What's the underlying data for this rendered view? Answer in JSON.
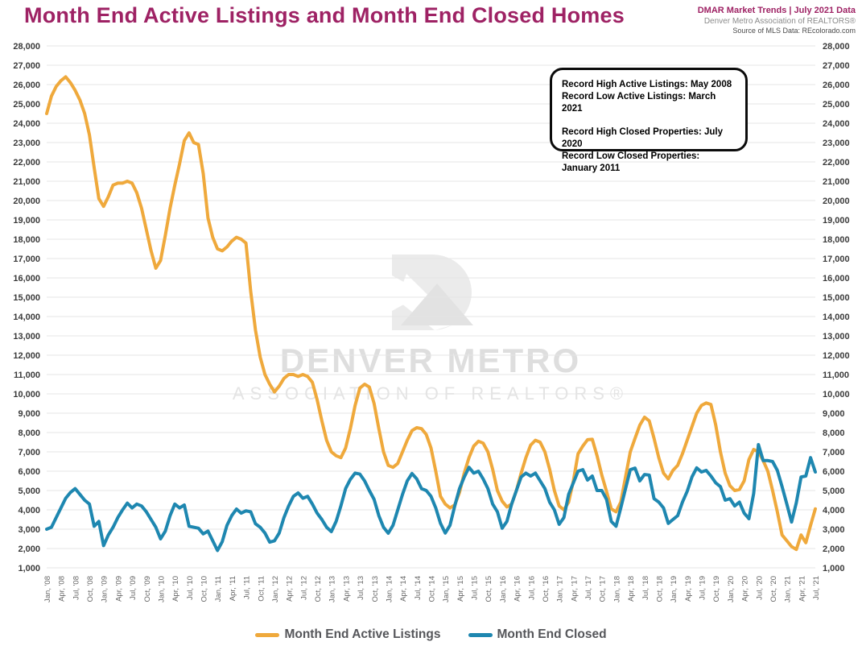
{
  "header": {
    "title": "Month End Active Listings and Month End Closed Homes",
    "meta_line1": "DMAR Market Trends | July 2021 Data",
    "meta_line2": "Denver Metro Association of REALTORS®",
    "meta_line3": "Source of MLS Data: REcolorado.com"
  },
  "annotation": {
    "line1": "Record High Active Listings: May 2008",
    "line2": "Record Low Active Listings: March 2021",
    "line3": "Record High Closed Properties: July 2020",
    "line4": "Record Low Closed Properties: January 2011"
  },
  "watermark": {
    "line1": "DENVER METRO",
    "line2": "ASSOCIATION OF REALTORS®"
  },
  "colors": {
    "active_line": "#EFA93C",
    "closed_line": "#1E87B0",
    "title": "#9e2264",
    "grid": "#e4e4e4",
    "y_label": "#3a3a3a",
    "x_label": "#666666"
  },
  "chart_data": {
    "type": "line",
    "title": "Month End Active Listings and Month End Closed Homes",
    "grid": true,
    "legend_position": "bottom",
    "ylim": [
      1000,
      28000
    ],
    "ytick_step": 1000,
    "months_per_tick": 3,
    "x_tick_labels": [
      "Jan, '08",
      "Apr, '08",
      "Jul, '08",
      "Oct, '08",
      "Jan, '09",
      "Apr, '09",
      "Jul, '09",
      "Oct, '09",
      "Jan, '10",
      "Apr, '10",
      "Jul, '10",
      "Oct, '10",
      "Jan, '11",
      "Apr, '11",
      "Jul, '11",
      "Oct, '11",
      "Jan, '12",
      "Apr, '12",
      "Jul, '12",
      "Oct, '12",
      "Jan, '13",
      "Apr, '13",
      "Jul, '13",
      "Oct, '13",
      "Jan, '14",
      "Apr, '14",
      "Jul, '14",
      "Oct, '14",
      "Jan, '15",
      "Apr, '15",
      "Jul, '15",
      "Oct, '15",
      "Jan, '16",
      "Apr, '16",
      "Jul, '16",
      "Oct, '16",
      "Jan, '17",
      "Apr, '17",
      "Jul, '17",
      "Oct, '17",
      "Jan, '18",
      "Apr, '18",
      "Jul, '18",
      "Oct, '18",
      "Jan, '19",
      "Apr, '19",
      "Jul, '19",
      "Oct, '19",
      "Jan, '20",
      "Apr, '20",
      "Jul, '20",
      "Oct, '20",
      "Jan, '21",
      "Apr, '21",
      "Jul, '21"
    ],
    "series": [
      {
        "name": "Month End Active Listings",
        "color": "#EFA93C",
        "values": [
          24500,
          25400,
          25900,
          26200,
          26400,
          26100,
          25700,
          25200,
          24500,
          23400,
          21700,
          20100,
          19700,
          20200,
          20800,
          20900,
          20900,
          21000,
          20900,
          20400,
          19600,
          18500,
          17400,
          16500,
          16900,
          18200,
          19600,
          20800,
          21900,
          23100,
          23500,
          23000,
          22900,
          21400,
          19100,
          18100,
          17500,
          17400,
          17600,
          17900,
          18100,
          18000,
          17800,
          15300,
          13300,
          11900,
          11000,
          10500,
          10100,
          10400,
          10800,
          11000,
          11000,
          10900,
          11000,
          10900,
          10600,
          9700,
          8600,
          7600,
          7000,
          6800,
          6700,
          7200,
          8200,
          9400,
          10300,
          10500,
          10350,
          9500,
          8200,
          7000,
          6300,
          6200,
          6400,
          7000,
          7600,
          8100,
          8250,
          8200,
          7900,
          7200,
          6000,
          4700,
          4300,
          4100,
          4250,
          4900,
          5900,
          6700,
          7300,
          7550,
          7450,
          7000,
          6100,
          5000,
          4450,
          4150,
          4300,
          5000,
          5900,
          6700,
          7350,
          7600,
          7500,
          7000,
          6100,
          5000,
          4200,
          4000,
          4400,
          5500,
          6900,
          7300,
          7630,
          7650,
          6800,
          5800,
          4950,
          4050,
          3900,
          4400,
          5700,
          7000,
          7700,
          8380,
          8790,
          8600,
          7700,
          6700,
          5900,
          5600,
          6040,
          6300,
          6900,
          7600,
          8300,
          9000,
          9400,
          9530,
          9450,
          8400,
          7000,
          5900,
          5250,
          5000,
          5050,
          5500,
          6600,
          7120,
          7000,
          6550,
          6000,
          5000,
          3900,
          2700,
          2400,
          2100,
          1950,
          2700,
          2300,
          3200,
          4050
        ]
      },
      {
        "name": "Month End Closed",
        "color": "#1E87B0",
        "values": [
          3000,
          3100,
          3600,
          4100,
          4600,
          4900,
          5100,
          4800,
          4500,
          4300,
          3150,
          3400,
          2150,
          2700,
          3100,
          3600,
          4000,
          4350,
          4100,
          4300,
          4200,
          3900,
          3500,
          3100,
          2500,
          2900,
          3700,
          4300,
          4100,
          4250,
          3150,
          3100,
          3050,
          2760,
          2900,
          2400,
          1900,
          2350,
          3200,
          3700,
          4040,
          3830,
          3950,
          3900,
          3280,
          3100,
          2800,
          2330,
          2400,
          2800,
          3600,
          4200,
          4700,
          4875,
          4600,
          4700,
          4300,
          3830,
          3500,
          3100,
          2875,
          3400,
          4200,
          5100,
          5580,
          5900,
          5850,
          5500,
          5000,
          4540,
          3700,
          3100,
          2790,
          3200,
          4000,
          4800,
          5500,
          5880,
          5600,
          5100,
          5000,
          4700,
          4100,
          3300,
          2800,
          3200,
          4200,
          5100,
          5700,
          6200,
          5900,
          6000,
          5600,
          5100,
          4300,
          3900,
          3050,
          3400,
          4300,
          5000,
          5700,
          5900,
          5750,
          5900,
          5500,
          5100,
          4400,
          4000,
          3250,
          3600,
          4800,
          5400,
          6000,
          6080,
          5540,
          5750,
          5000,
          5000,
          4540,
          3400,
          3150,
          4100,
          5100,
          6080,
          6160,
          5500,
          5830,
          5800,
          4580,
          4400,
          4100,
          3300,
          3500,
          3700,
          4400,
          4960,
          5700,
          6170,
          5960,
          6040,
          5750,
          5400,
          5200,
          4500,
          4580,
          4200,
          4400,
          3830,
          3540,
          4840,
          7375,
          6550,
          6550,
          6500,
          6040,
          5200,
          4300,
          3370,
          4370,
          5700,
          5750,
          6700,
          5960
        ]
      }
    ],
    "annotations": [
      "Record High Active Listings: May 2008",
      "Record Low Active Listings: March 2021",
      "Record High Closed Properties: July 2020",
      "Record Low Closed Properties: January 2011"
    ]
  }
}
